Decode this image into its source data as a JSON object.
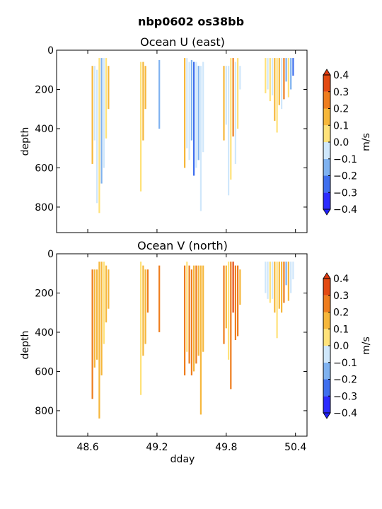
{
  "figure": {
    "suptitle": "nbp0602 os38bb"
  },
  "colorbar": {
    "label": "m/s",
    "tick_labels": [
      "0.4",
      "0.3",
      "0.2",
      "0.1",
      "0.0",
      "−0.1",
      "−0.2",
      "−0.3",
      "−0.4"
    ],
    "levels": [
      -0.4,
      -0.3,
      -0.2,
      -0.1,
      0.0,
      0.1,
      0.2,
      0.3,
      0.4
    ],
    "colors": [
      "#2b2bff",
      "#3f6fee",
      "#7fb2f0",
      "#cfe7fb",
      "#fffbe0",
      "#ffe27a",
      "#f6b73b",
      "#ee7d1e",
      "#e34a12"
    ],
    "extend_low_color": "#2020ff",
    "extend_high_color": "#e03a10"
  },
  "chart_data": [
    {
      "type": "heatmap",
      "title": "Ocean U (east)",
      "xlabel": "",
      "ylabel": "depth",
      "x_ticks": [
        "48.6",
        "49.2",
        "49.8",
        "50.4"
      ],
      "x_tick_values": [
        48.6,
        49.2,
        49.8,
        50.4
      ],
      "xlim": [
        48.33,
        50.5
      ],
      "y_ticks": [
        "0",
        "200",
        "400",
        "600",
        "800"
      ],
      "y_tick_values": [
        0,
        200,
        400,
        600,
        800
      ],
      "ylim": [
        930,
        0
      ],
      "units": "m/s",
      "profiles": [
        {
          "x": 48.64,
          "top": 80,
          "bottom": 580,
          "v": 0.1
        },
        {
          "x": 48.66,
          "top": 80,
          "bottom": 460,
          "v": -0.05
        },
        {
          "x": 48.68,
          "top": 100,
          "bottom": 780,
          "v": -0.03
        },
        {
          "x": 48.7,
          "top": 40,
          "bottom": 830,
          "v": 0.05
        },
        {
          "x": 48.72,
          "top": 40,
          "bottom": 680,
          "v": -0.15
        },
        {
          "x": 48.74,
          "top": 40,
          "bottom": 600,
          "v": -0.05
        },
        {
          "x": 48.76,
          "top": 40,
          "bottom": 450,
          "v": 0.05
        },
        {
          "x": 48.78,
          "top": 80,
          "bottom": 300,
          "v": 0.12
        },
        {
          "x": 49.06,
          "top": 60,
          "bottom": 720,
          "v": 0.05
        },
        {
          "x": 49.08,
          "top": 60,
          "bottom": 460,
          "v": 0.18
        },
        {
          "x": 49.1,
          "top": 80,
          "bottom": 300,
          "v": 0.1
        },
        {
          "x": 49.22,
          "top": 50,
          "bottom": 400,
          "v": -0.12
        },
        {
          "x": 49.44,
          "top": 40,
          "bottom": 600,
          "v": 0.12
        },
        {
          "x": 49.46,
          "top": 40,
          "bottom": 500,
          "v": -0.08
        },
        {
          "x": 49.48,
          "top": 60,
          "bottom": 560,
          "v": -0.05
        },
        {
          "x": 49.5,
          "top": 50,
          "bottom": 460,
          "v": -0.12
        },
        {
          "x": 49.52,
          "top": 60,
          "bottom": 640,
          "v": -0.22
        },
        {
          "x": 49.54,
          "top": 60,
          "bottom": 600,
          "v": -0.08
        },
        {
          "x": 49.56,
          "top": 80,
          "bottom": 560,
          "v": -0.15
        },
        {
          "x": 49.58,
          "top": 80,
          "bottom": 820,
          "v": -0.05
        },
        {
          "x": 49.6,
          "top": 60,
          "bottom": 520,
          "v": -0.05
        },
        {
          "x": 49.78,
          "top": 80,
          "bottom": 460,
          "v": 0.15
        },
        {
          "x": 49.8,
          "top": 80,
          "bottom": 380,
          "v": -0.05
        },
        {
          "x": 49.82,
          "top": 80,
          "bottom": 740,
          "v": -0.1
        },
        {
          "x": 49.84,
          "top": 40,
          "bottom": 660,
          "v": 0.05
        },
        {
          "x": 49.86,
          "top": 40,
          "bottom": 440,
          "v": 0.2
        },
        {
          "x": 49.88,
          "top": 60,
          "bottom": 580,
          "v": -0.08
        },
        {
          "x": 49.9,
          "top": 40,
          "bottom": 400,
          "v": 0.08
        },
        {
          "x": 49.92,
          "top": 80,
          "bottom": 200,
          "v": -0.05
        },
        {
          "x": 50.14,
          "top": 40,
          "bottom": 220,
          "v": 0.05
        },
        {
          "x": 50.16,
          "top": 40,
          "bottom": 200,
          "v": -0.1
        },
        {
          "x": 50.18,
          "top": 40,
          "bottom": 260,
          "v": 0.08
        },
        {
          "x": 50.2,
          "top": 40,
          "bottom": 230,
          "v": -0.05
        },
        {
          "x": 50.22,
          "top": 40,
          "bottom": 360,
          "v": 0.12
        },
        {
          "x": 50.24,
          "top": 40,
          "bottom": 420,
          "v": 0.05
        },
        {
          "x": 50.26,
          "top": 40,
          "bottom": 280,
          "v": 0.18
        },
        {
          "x": 50.28,
          "top": 40,
          "bottom": 300,
          "v": -0.05
        },
        {
          "x": 50.3,
          "top": 40,
          "bottom": 250,
          "v": 0.22
        },
        {
          "x": 50.32,
          "top": 40,
          "bottom": 160,
          "v": -0.12
        },
        {
          "x": 50.34,
          "top": 40,
          "bottom": 240,
          "v": 0.08
        },
        {
          "x": 50.36,
          "top": 40,
          "bottom": 200,
          "v": -0.2
        },
        {
          "x": 50.38,
          "top": 40,
          "bottom": 130,
          "v": -0.25
        }
      ]
    },
    {
      "type": "heatmap",
      "title": "Ocean V (north)",
      "xlabel": "dday",
      "ylabel": "depth",
      "x_ticks": [
        "48.6",
        "49.2",
        "49.8",
        "50.4"
      ],
      "x_tick_values": [
        48.6,
        49.2,
        49.8,
        50.4
      ],
      "xlim": [
        48.33,
        50.5
      ],
      "y_ticks": [
        "0",
        "200",
        "400",
        "600",
        "800"
      ],
      "y_tick_values": [
        0,
        200,
        400,
        600,
        800
      ],
      "ylim": [
        930,
        0
      ],
      "units": "m/s",
      "profiles": [
        {
          "x": 48.64,
          "top": 80,
          "bottom": 740,
          "v": 0.22
        },
        {
          "x": 48.66,
          "top": 80,
          "bottom": 580,
          "v": 0.15
        },
        {
          "x": 48.68,
          "top": 80,
          "bottom": 540,
          "v": 0.1
        },
        {
          "x": 48.7,
          "top": 40,
          "bottom": 840,
          "v": 0.18
        },
        {
          "x": 48.72,
          "top": 40,
          "bottom": 620,
          "v": 0.12
        },
        {
          "x": 48.74,
          "top": 40,
          "bottom": 460,
          "v": 0.08
        },
        {
          "x": 48.76,
          "top": 60,
          "bottom": 350,
          "v": 0.15
        },
        {
          "x": 48.78,
          "top": 80,
          "bottom": 280,
          "v": 0.1
        },
        {
          "x": 49.06,
          "top": 40,
          "bottom": 720,
          "v": 0.05
        },
        {
          "x": 49.08,
          "top": 60,
          "bottom": 520,
          "v": 0.15
        },
        {
          "x": 49.1,
          "top": 80,
          "bottom": 460,
          "v": 0.12
        },
        {
          "x": 49.12,
          "top": 80,
          "bottom": 300,
          "v": 0.2
        },
        {
          "x": 49.22,
          "top": 60,
          "bottom": 400,
          "v": 0.28
        },
        {
          "x": 49.44,
          "top": 60,
          "bottom": 620,
          "v": 0.2
        },
        {
          "x": 49.46,
          "top": 40,
          "bottom": 500,
          "v": 0.08
        },
        {
          "x": 49.48,
          "top": 60,
          "bottom": 560,
          "v": 0.22
        },
        {
          "x": 49.5,
          "top": 80,
          "bottom": 620,
          "v": 0.25
        },
        {
          "x": 49.52,
          "top": 60,
          "bottom": 600,
          "v": 0.18
        },
        {
          "x": 49.54,
          "top": 60,
          "bottom": 560,
          "v": 0.22
        },
        {
          "x": 49.56,
          "top": 60,
          "bottom": 520,
          "v": 0.15
        },
        {
          "x": 49.58,
          "top": 60,
          "bottom": 820,
          "v": 0.12
        },
        {
          "x": 49.6,
          "top": 60,
          "bottom": 500,
          "v": 0.1
        },
        {
          "x": 49.78,
          "top": 60,
          "bottom": 460,
          "v": 0.28
        },
        {
          "x": 49.8,
          "top": 60,
          "bottom": 380,
          "v": 0.15
        },
        {
          "x": 49.82,
          "top": 40,
          "bottom": 540,
          "v": 0.05
        },
        {
          "x": 49.84,
          "top": 40,
          "bottom": 690,
          "v": 0.22
        },
        {
          "x": 49.86,
          "top": 40,
          "bottom": 300,
          "v": 0.3
        },
        {
          "x": 49.88,
          "top": 60,
          "bottom": 440,
          "v": 0.2
        },
        {
          "x": 49.9,
          "top": 60,
          "bottom": 420,
          "v": 0.25
        },
        {
          "x": 49.92,
          "top": 80,
          "bottom": 260,
          "v": 0.12
        },
        {
          "x": 50.14,
          "top": 40,
          "bottom": 200,
          "v": -0.08
        },
        {
          "x": 50.16,
          "top": 40,
          "bottom": 230,
          "v": -0.05
        },
        {
          "x": 50.18,
          "top": 40,
          "bottom": 250,
          "v": 0.05
        },
        {
          "x": 50.2,
          "top": 40,
          "bottom": 230,
          "v": -0.1
        },
        {
          "x": 50.22,
          "top": 40,
          "bottom": 300,
          "v": 0.15
        },
        {
          "x": 50.24,
          "top": 40,
          "bottom": 430,
          "v": 0.05
        },
        {
          "x": 50.26,
          "top": 40,
          "bottom": 280,
          "v": 0.18
        },
        {
          "x": 50.28,
          "top": 40,
          "bottom": 300,
          "v": 0.12
        },
        {
          "x": 50.3,
          "top": 40,
          "bottom": 250,
          "v": 0.2
        },
        {
          "x": 50.32,
          "top": 40,
          "bottom": 160,
          "v": -0.12
        },
        {
          "x": 50.34,
          "top": 40,
          "bottom": 240,
          "v": 0.15
        },
        {
          "x": 50.36,
          "top": 40,
          "bottom": 200,
          "v": -0.05
        },
        {
          "x": 50.38,
          "top": 40,
          "bottom": 130,
          "v": -0.1
        }
      ]
    }
  ]
}
